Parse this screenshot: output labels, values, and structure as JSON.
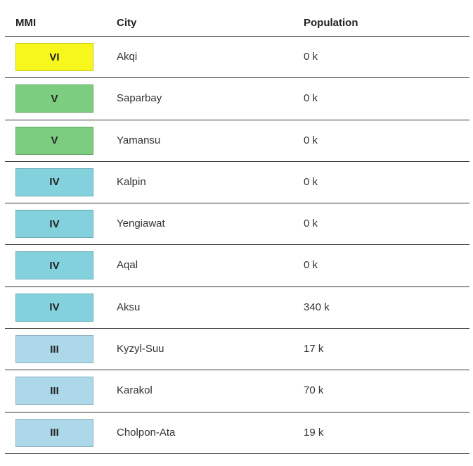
{
  "table": {
    "headers": {
      "mmi": "MMI",
      "city": "City",
      "population": "Population"
    },
    "rows": [
      {
        "mmi": "VI",
        "city": "Akqi",
        "population": "0 k",
        "color": "#f7f71e"
      },
      {
        "mmi": "V",
        "city": "Saparbay",
        "population": "0 k",
        "color": "#7dcd80"
      },
      {
        "mmi": "V",
        "city": "Yamansu",
        "population": "0 k",
        "color": "#7dcd80"
      },
      {
        "mmi": "IV",
        "city": "Kalpin",
        "population": "0 k",
        "color": "#82d1dc"
      },
      {
        "mmi": "IV",
        "city": "Yengiawat",
        "population": "0 k",
        "color": "#82d1dc"
      },
      {
        "mmi": "IV",
        "city": "Aqal",
        "population": "0 k",
        "color": "#82d1dc"
      },
      {
        "mmi": "IV",
        "city": "Aksu",
        "population": "340 k",
        "color": "#82d1dc"
      },
      {
        "mmi": "III",
        "city": "Kyzyl-Suu",
        "population": "17 k",
        "color": "#add8e9"
      },
      {
        "mmi": "III",
        "city": "Karakol",
        "population": "70 k",
        "color": "#add8e9"
      },
      {
        "mmi": "III",
        "city": "Cholpon-Ata",
        "population": "19 k",
        "color": "#add8e9"
      }
    ]
  }
}
